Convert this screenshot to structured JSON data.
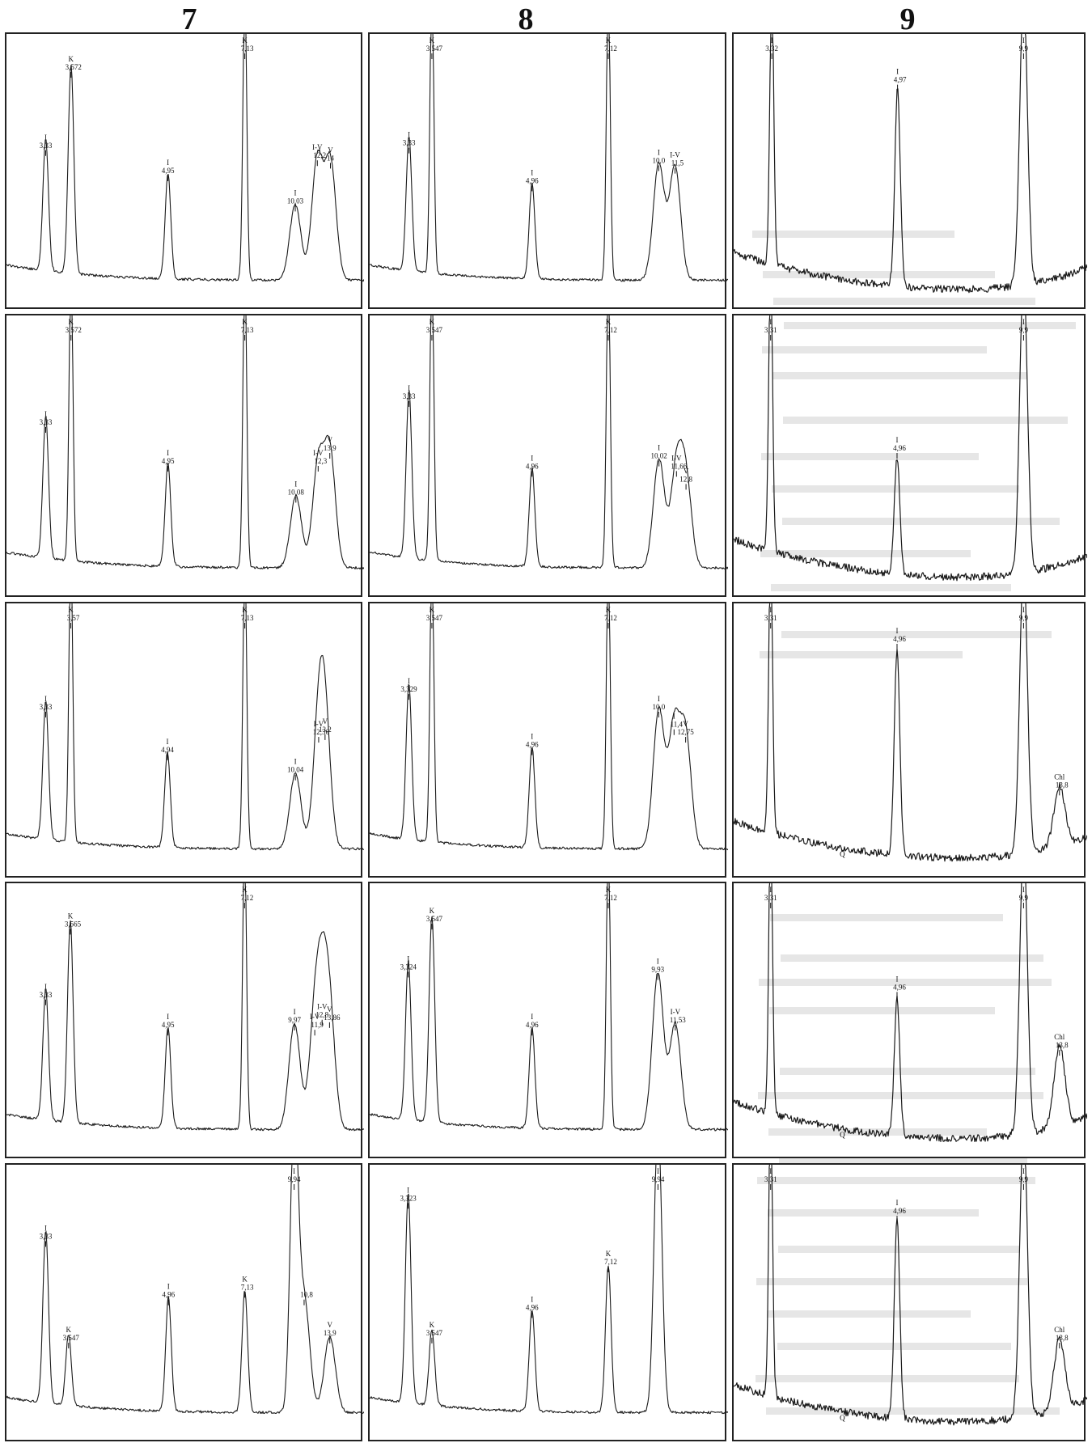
{
  "columns": [
    {
      "id": "7",
      "label": "7"
    },
    {
      "id": "8",
      "label": "8"
    },
    {
      "id": "9",
      "label": "9"
    }
  ],
  "colors": {
    "trace": "#1a1a1a",
    "frame": "#222222",
    "background": "#ffffff"
  },
  "chart_data": [
    {
      "type": "line",
      "column": "7",
      "row": 1,
      "x_unit": "Å",
      "peaks": [
        {
          "d": 3.33,
          "label": "3,33",
          "mineral": "I",
          "intensity": 0.52
        },
        {
          "d": 3.572,
          "label": "3,572",
          "mineral": "K",
          "intensity": 0.83
        },
        {
          "d": 4.95,
          "label": "4,95",
          "mineral": "I",
          "intensity": 0.42
        },
        {
          "d": 7.13,
          "label": "7,13",
          "mineral": "K",
          "intensity": 1.0
        },
        {
          "d": 10.03,
          "label": "10,03",
          "mineral": "I",
          "intensity": 0.3
        },
        {
          "d": 12.2,
          "label": "12,2",
          "mineral": "I-V",
          "intensity": 0.48
        },
        {
          "d": 14,
          "label": "14",
          "mineral": "V",
          "intensity": 0.47
        }
      ]
    },
    {
      "type": "line",
      "column": "8",
      "row": 1,
      "x_unit": "Å",
      "peaks": [
        {
          "d": 3.33,
          "label": "3,33",
          "mineral": "I",
          "intensity": 0.53
        },
        {
          "d": 3.547,
          "label": "3,547",
          "mineral": "K",
          "intensity": 1.0
        },
        {
          "d": 4.96,
          "label": "4,96",
          "mineral": "I",
          "intensity": 0.38
        },
        {
          "d": 7.12,
          "label": "7,12",
          "mineral": "K",
          "intensity": 1.0
        },
        {
          "d": 10.0,
          "label": "10,0",
          "mineral": "I",
          "intensity": 0.46
        },
        {
          "d": 11.5,
          "label": "11,5",
          "mineral": "I-V",
          "intensity": 0.45
        }
      ]
    },
    {
      "type": "line",
      "column": "9",
      "row": 1,
      "x_unit": "Å",
      "noisy": true,
      "peaks": [
        {
          "d": 3.32,
          "label": "3,32",
          "mineral": "I",
          "intensity": 1.0
        },
        {
          "d": 4.97,
          "label": "4,97",
          "mineral": "I",
          "intensity": 0.78
        },
        {
          "d": 9.9,
          "label": "9,9",
          "mineral": "I",
          "intensity": 1.0
        }
      ]
    },
    {
      "type": "line",
      "column": "7",
      "row": 2,
      "x_unit": "Å",
      "peaks": [
        {
          "d": 3.33,
          "label": "3,33",
          "mineral": "I",
          "intensity": 0.55
        },
        {
          "d": 3.572,
          "label": "3,572",
          "mineral": "K",
          "intensity": 1.0
        },
        {
          "d": 4.95,
          "label": "4,95",
          "mineral": "I",
          "intensity": 0.4
        },
        {
          "d": 7.13,
          "label": "7,13",
          "mineral": "K",
          "intensity": 1.0
        },
        {
          "d": 10.08,
          "label": "10,08",
          "mineral": "I",
          "intensity": 0.28
        },
        {
          "d": 12.3,
          "label": "12,3",
          "mineral": "I-V",
          "intensity": 0.4
        },
        {
          "d": 13.9,
          "label": "13,9",
          "mineral": "V",
          "intensity": 0.45
        }
      ]
    },
    {
      "type": "line",
      "column": "8",
      "row": 2,
      "x_unit": "Å",
      "peaks": [
        {
          "d": 3.33,
          "label": "3,33",
          "mineral": "I",
          "intensity": 0.65
        },
        {
          "d": 3.547,
          "label": "3,547",
          "mineral": "K",
          "intensity": 1.0
        },
        {
          "d": 4.96,
          "label": "4,96",
          "mineral": "I",
          "intensity": 0.38
        },
        {
          "d": 7.12,
          "label": "7,12",
          "mineral": "K",
          "intensity": 1.0
        },
        {
          "d": 10.02,
          "label": "10,02",
          "mineral": "I",
          "intensity": 0.42
        },
        {
          "d": 11.66,
          "label": "11,66",
          "mineral": "I-V",
          "intensity": 0.38
        },
        {
          "d": 12.8,
          "label": "12,8",
          "mineral": "V",
          "intensity": 0.33
        }
      ]
    },
    {
      "type": "line",
      "column": "9",
      "row": 2,
      "x_unit": "Å",
      "noisy": true,
      "peaks": [
        {
          "d": 3.31,
          "label": "3,31",
          "mineral": "I",
          "intensity": 1.0
        },
        {
          "d": 4.96,
          "label": "4,96",
          "mineral": "I",
          "intensity": 0.45
        },
        {
          "d": 9.9,
          "label": "9,9",
          "mineral": "I",
          "intensity": 1.0
        }
      ]
    },
    {
      "type": "line",
      "column": "7",
      "row": 3,
      "x_unit": "Å",
      "peaks": [
        {
          "d": 3.33,
          "label": "3,33",
          "mineral": "I",
          "intensity": 0.55
        },
        {
          "d": 3.57,
          "label": "3,57",
          "mineral": "K",
          "intensity": 1.0
        },
        {
          "d": 4.94,
          "label": "4,94",
          "mineral": "I",
          "intensity": 0.38
        },
        {
          "d": 7.13,
          "label": "7,13",
          "mineral": "K",
          "intensity": 1.0
        },
        {
          "d": 10.04,
          "label": "10,04",
          "mineral": "I",
          "intensity": 0.3
        },
        {
          "d": 12.36,
          "label": "12,36",
          "mineral": "I-V",
          "intensity": 0.45
        },
        {
          "d": 13.2,
          "label": "13,2",
          "mineral": "V",
          "intensity": 0.46
        }
      ]
    },
    {
      "type": "line",
      "column": "8",
      "row": 3,
      "x_unit": "Å",
      "peaks": [
        {
          "d": 3.329,
          "label": "3,329",
          "mineral": "I",
          "intensity": 0.62
        },
        {
          "d": 3.547,
          "label": "3,547",
          "mineral": "K",
          "intensity": 1.0
        },
        {
          "d": 4.96,
          "label": "4,96",
          "mineral": "I",
          "intensity": 0.4
        },
        {
          "d": 7.12,
          "label": "7,12",
          "mineral": "K",
          "intensity": 1.0
        },
        {
          "d": 10.0,
          "label": "10,0",
          "mineral": "I",
          "intensity": 0.55
        },
        {
          "d": 11.4,
          "label": "11,4",
          "mineral": "I",
          "intensity": 0.48
        },
        {
          "d": 12.75,
          "label": "12,75",
          "mineral": "V",
          "intensity": 0.45
        }
      ]
    },
    {
      "type": "line",
      "column": "9",
      "row": 3,
      "x_unit": "Å",
      "noisy": true,
      "peaks": [
        {
          "d": 3.31,
          "label": "3,31",
          "mineral": "I",
          "intensity": 1.0
        },
        {
          "d": 4.96,
          "label": "4,96",
          "mineral": "I",
          "intensity": 0.82
        },
        {
          "d": 9.9,
          "label": "9,9",
          "mineral": "I",
          "intensity": 1.0
        },
        {
          "d": 13.8,
          "label": "13,8",
          "mineral": "Chl",
          "intensity": 0.24
        }
      ],
      "extra_labels": [
        "Q"
      ]
    },
    {
      "type": "line",
      "column": "7",
      "row": 4,
      "x_unit": "Å",
      "peaks": [
        {
          "d": 3.33,
          "label": "3,33",
          "mineral": "I",
          "intensity": 0.52
        },
        {
          "d": 3.565,
          "label": "3,565",
          "mineral": "K",
          "intensity": 0.8
        },
        {
          "d": 4.95,
          "label": "4,95",
          "mineral": "I",
          "intensity": 0.4
        },
        {
          "d": 7.12,
          "label": "7,12",
          "mineral": "K",
          "intensity": 1.0
        },
        {
          "d": 9.97,
          "label": "9,97",
          "mineral": "I",
          "intensity": 0.42
        },
        {
          "d": 11.9,
          "label": "11,9",
          "mineral": "I-V",
          "intensity": 0.4
        },
        {
          "d": 12.8,
          "label": "12,8",
          "mineral": "I-V",
          "intensity": 0.44
        },
        {
          "d": 13.86,
          "label": "13,86",
          "mineral": "V",
          "intensity": 0.43
        }
      ]
    },
    {
      "type": "line",
      "column": "8",
      "row": 4,
      "x_unit": "Å",
      "peaks": [
        {
          "d": 3.324,
          "label": "3,324",
          "mineral": "I",
          "intensity": 0.63
        },
        {
          "d": 3.547,
          "label": "3,547",
          "mineral": "K",
          "intensity": 0.82
        },
        {
          "d": 4.96,
          "label": "4,96",
          "mineral": "I",
          "intensity": 0.4
        },
        {
          "d": 7.12,
          "label": "7,12",
          "mineral": "K",
          "intensity": 1.0
        },
        {
          "d": 9.93,
          "label": "9,93",
          "mineral": "I",
          "intensity": 0.62
        },
        {
          "d": 11.53,
          "label": "11,53",
          "mineral": "I-V",
          "intensity": 0.42
        }
      ]
    },
    {
      "type": "line",
      "column": "9",
      "row": 4,
      "x_unit": "Å",
      "noisy": true,
      "peaks": [
        {
          "d": 3.31,
          "label": "3,31",
          "mineral": "I",
          "intensity": 1.0
        },
        {
          "d": 4.96,
          "label": "4,96",
          "mineral": "I",
          "intensity": 0.55
        },
        {
          "d": 9.9,
          "label": "9,9",
          "mineral": "I",
          "intensity": 1.0
        },
        {
          "d": 13.8,
          "label": "13,8",
          "mineral": "Chl",
          "intensity": 0.32
        }
      ],
      "extra_labels": [
        "Q"
      ]
    },
    {
      "type": "line",
      "column": "7",
      "row": 5,
      "x_unit": "Å",
      "peaks": [
        {
          "d": 3.33,
          "label": "3,33",
          "mineral": "I",
          "intensity": 0.68
        },
        {
          "d": 3.547,
          "label": "3,547",
          "mineral": "K",
          "intensity": 0.28
        },
        {
          "d": 4.96,
          "label": "4,96",
          "mineral": "I",
          "intensity": 0.45
        },
        {
          "d": 7.13,
          "label": "7,13",
          "mineral": "K",
          "intensity": 0.48
        },
        {
          "d": 9.94,
          "label": "9,94",
          "mineral": "I",
          "intensity": 1.0
        },
        {
          "d": 10.8,
          "label": "10,8",
          "mineral": "",
          "intensity": 0.45
        },
        {
          "d": 13.9,
          "label": "13,9",
          "mineral": "V",
          "intensity": 0.3
        }
      ]
    },
    {
      "type": "line",
      "column": "8",
      "row": 5,
      "x_unit": "Å",
      "peaks": [
        {
          "d": 3.323,
          "label": "3,323",
          "mineral": "I",
          "intensity": 0.83
        },
        {
          "d": 3.547,
          "label": "3,547",
          "mineral": "K",
          "intensity": 0.3
        },
        {
          "d": 4.96,
          "label": "4,96",
          "mineral": "I",
          "intensity": 0.4
        },
        {
          "d": 7.12,
          "label": "7,12",
          "mineral": "K",
          "intensity": 0.58
        },
        {
          "d": 9.94,
          "label": "9,94",
          "mineral": "I",
          "intensity": 1.0
        }
      ]
    },
    {
      "type": "line",
      "column": "9",
      "row": 5,
      "x_unit": "Å",
      "noisy": true,
      "peaks": [
        {
          "d": 3.31,
          "label": "3,31",
          "mineral": "I",
          "intensity": 1.0
        },
        {
          "d": 4.96,
          "label": "4,96",
          "mineral": "I",
          "intensity": 0.78
        },
        {
          "d": 9.9,
          "label": "9,9",
          "mineral": "I",
          "intensity": 1.0
        },
        {
          "d": 13.8,
          "label": "13,8",
          "mineral": "Chl",
          "intensity": 0.28
        }
      ],
      "extra_labels": [
        "Q"
      ]
    }
  ]
}
